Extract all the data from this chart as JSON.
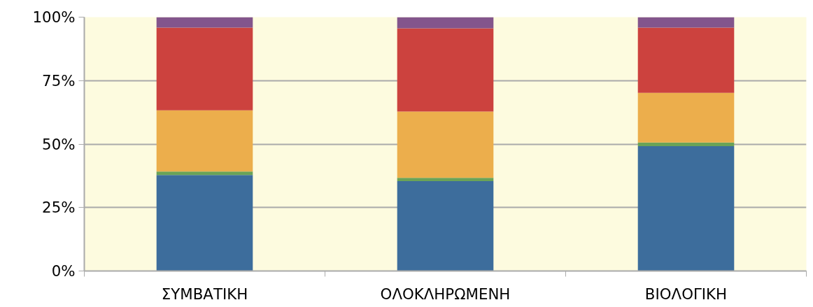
{
  "chart_data": {
    "type": "bar",
    "stacked": true,
    "categories": [
      "ΣΥΜΒΑΤΙΚΗ",
      "ΟΛΟΚΛΗΡΩΜΕΝΗ",
      "ΒΙΟΛΟΓΙΚΗ"
    ],
    "series": [
      {
        "color": "#3d6d9c",
        "values": [
          37.8,
          35.4,
          49.2
        ]
      },
      {
        "color": "#6aa357",
        "values": [
          1.4,
          1.3,
          1.4
        ]
      },
      {
        "color": "#ecae4c",
        "values": [
          24.1,
          26.1,
          19.6
        ]
      },
      {
        "color": "#cc423e",
        "values": [
          32.6,
          32.8,
          25.7
        ]
      },
      {
        "color": "#83558c",
        "values": [
          4.1,
          4.4,
          4.1
        ]
      }
    ],
    "ylim": [
      0,
      100
    ],
    "yticks": [
      {
        "value": 0,
        "label": "0%"
      },
      {
        "value": 25,
        "label": "25%"
      },
      {
        "value": 50,
        "label": "50%"
      },
      {
        "value": 75,
        "label": "75%"
      },
      {
        "value": 100,
        "label": "100%"
      }
    ],
    "grid": "y"
  }
}
